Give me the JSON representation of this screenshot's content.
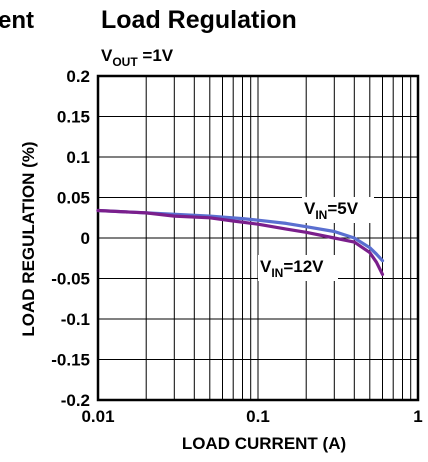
{
  "left_cut_title": "ent",
  "chart_data": {
    "type": "line",
    "title": "Load Regulation",
    "subtitle": {
      "main": "V",
      "sub": "OUT",
      "rest": " =1V"
    },
    "xlabel": "LOAD CURRENT (A)",
    "ylabel": "LOAD REGULATION (%)",
    "xscale": "log",
    "xlim": [
      0.01,
      1
    ],
    "ylim": [
      -0.2,
      0.2
    ],
    "grid": true,
    "xticks": [
      0.01,
      0.1,
      1
    ],
    "xtick_labels": [
      "0.01",
      "0.1",
      "1"
    ],
    "yticks": [
      0.2,
      0.15,
      0.1,
      0.05,
      0,
      -0.05,
      -0.1,
      -0.15,
      -0.2
    ],
    "ytick_labels": [
      "0.2",
      "0.15",
      "0.1",
      "0.05",
      "0",
      "-0.05",
      "-0.1",
      "-0.15",
      "-0.2"
    ],
    "series": [
      {
        "name": "VIN=5V",
        "label": {
          "main": "V",
          "sub": "IN",
          "rest": "=5V"
        },
        "color": "#5a6fd0",
        "x": [
          0.01,
          0.02,
          0.05,
          0.08,
          0.1,
          0.15,
          0.2,
          0.3,
          0.4,
          0.5,
          0.55,
          0.6
        ],
        "y": [
          0.034,
          0.031,
          0.027,
          0.024,
          0.022,
          0.018,
          0.014,
          0.008,
          0.0,
          -0.012,
          -0.02,
          -0.028
        ]
      },
      {
        "name": "VIN=12V",
        "label": {
          "main": "V",
          "sub": "IN",
          "rest": "=12V"
        },
        "color": "#7b1f8c",
        "x": [
          0.01,
          0.02,
          0.03,
          0.05,
          0.07,
          0.1,
          0.15,
          0.2,
          0.3,
          0.4,
          0.5,
          0.55,
          0.6
        ],
        "y": [
          0.034,
          0.031,
          0.027,
          0.025,
          0.021,
          0.017,
          0.011,
          0.007,
          0.0,
          -0.005,
          -0.018,
          -0.03,
          -0.045
        ]
      }
    ]
  }
}
